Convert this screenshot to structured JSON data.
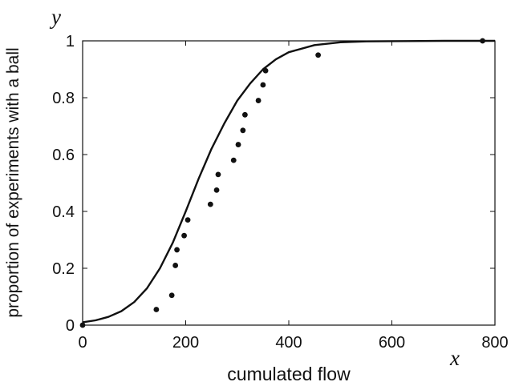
{
  "chart_data": {
    "type": "scatter",
    "xlabel": "cumulated flow",
    "ylabel": "proportion of experiments with a ball",
    "x_variable": "x",
    "y_variable": "y",
    "xlim": [
      0,
      800
    ],
    "ylim": [
      0,
      1
    ],
    "x_ticks": [
      0,
      200,
      400,
      600,
      800
    ],
    "y_ticks": [
      0,
      0.2,
      0.4,
      0.6,
      0.8,
      1
    ],
    "x_tick_labels": [
      "0",
      "200",
      "400",
      "600",
      "800"
    ],
    "y_tick_labels": [
      "0",
      "0.2",
      "0.4",
      "0.6",
      "0.8",
      "1"
    ],
    "grid": false,
    "series": [
      {
        "kind": "points",
        "marker": "dot",
        "points": [
          {
            "x": 0,
            "y": 0.0
          },
          {
            "x": 143,
            "y": 0.055
          },
          {
            "x": 173,
            "y": 0.105
          },
          {
            "x": 180,
            "y": 0.21
          },
          {
            "x": 183,
            "y": 0.265
          },
          {
            "x": 197,
            "y": 0.315
          },
          {
            "x": 204,
            "y": 0.37
          },
          {
            "x": 248,
            "y": 0.425
          },
          {
            "x": 260,
            "y": 0.475
          },
          {
            "x": 263,
            "y": 0.53
          },
          {
            "x": 293,
            "y": 0.58
          },
          {
            "x": 302,
            "y": 0.635
          },
          {
            "x": 311,
            "y": 0.685
          },
          {
            "x": 315,
            "y": 0.74
          },
          {
            "x": 341,
            "y": 0.79
          },
          {
            "x": 350,
            "y": 0.845
          },
          {
            "x": 355,
            "y": 0.895
          },
          {
            "x": 457,
            "y": 0.95
          },
          {
            "x": 776,
            "y": 1.0
          }
        ]
      },
      {
        "kind": "curve",
        "style": "solid",
        "points": [
          {
            "x": 0,
            "y": 0.01
          },
          {
            "x": 25,
            "y": 0.017
          },
          {
            "x": 50,
            "y": 0.029
          },
          {
            "x": 75,
            "y": 0.049
          },
          {
            "x": 100,
            "y": 0.081
          },
          {
            "x": 125,
            "y": 0.13
          },
          {
            "x": 150,
            "y": 0.2
          },
          {
            "x": 175,
            "y": 0.29
          },
          {
            "x": 200,
            "y": 0.4
          },
          {
            "x": 225,
            "y": 0.515
          },
          {
            "x": 250,
            "y": 0.62
          },
          {
            "x": 275,
            "y": 0.71
          },
          {
            "x": 300,
            "y": 0.79
          },
          {
            "x": 325,
            "y": 0.85
          },
          {
            "x": 350,
            "y": 0.9
          },
          {
            "x": 375,
            "y": 0.935
          },
          {
            "x": 400,
            "y": 0.96
          },
          {
            "x": 450,
            "y": 0.985
          },
          {
            "x": 500,
            "y": 0.995
          },
          {
            "x": 550,
            "y": 0.998
          },
          {
            "x": 600,
            "y": 0.999
          },
          {
            "x": 700,
            "y": 1.0
          },
          {
            "x": 800,
            "y": 1.0
          }
        ]
      }
    ]
  }
}
